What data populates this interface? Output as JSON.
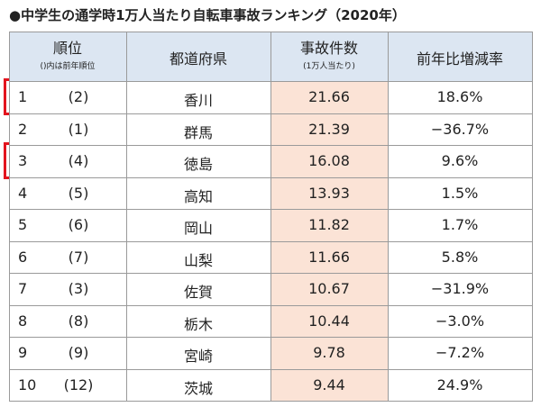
{
  "title": "●中学生の通学時1万人当たり自転車事故ランキング（2020年）",
  "table": {
    "header": {
      "rank": "順位",
      "rank_note": "()内は前年順位",
      "prefecture": "都道府県",
      "count": "事故件数",
      "count_note": "(1万人当たり)",
      "change": "前年比増減率"
    },
    "rows": [
      [
        "1",
        "(2)",
        "香川",
        "21.66",
        "18.6%"
      ],
      [
        "2",
        "(1)",
        "群馬",
        "21.39",
        "−36.7%"
      ],
      [
        "3",
        "(4)",
        "徳島",
        "16.08",
        "9.6%"
      ],
      [
        "4",
        "(5)",
        "高知",
        "13.93",
        "1.5%"
      ],
      [
        "5",
        "(6)",
        "岡山",
        "11.82",
        "1.7%"
      ],
      [
        "6",
        "(7)",
        "山梨",
        "11.66",
        "5.8%"
      ],
      [
        "7",
        "(3)",
        "佐賀",
        "10.67",
        "−31.9%"
      ],
      [
        "8",
        "(8)",
        "栃木",
        "10.44",
        "−3.0%"
      ],
      [
        "9",
        "(9)",
        "宮崎",
        "9.78",
        "−7.2%"
      ],
      [
        "10",
        "(12)",
        "茨城",
        "9.44",
        "24.9%"
      ]
    ]
  }
}
